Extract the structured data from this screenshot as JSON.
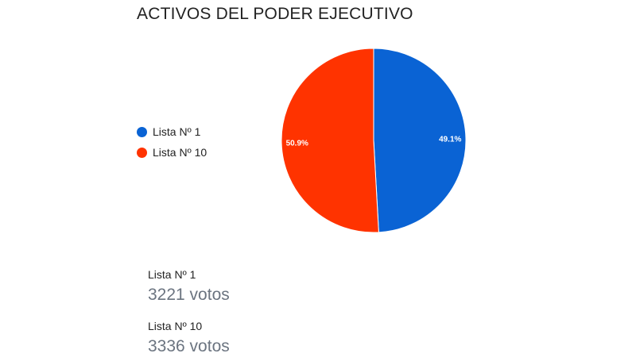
{
  "chart_data": {
    "type": "pie",
    "title": "ACTIVOS DEL PODER EJECUTIVO",
    "categories": [
      "Lista Nº 1",
      "Lista Nº 10"
    ],
    "values": [
      3221,
      3336
    ],
    "percent_labels": [
      "49.1%",
      "50.9%"
    ],
    "colors": [
      "#0a63d4",
      "#ff3300"
    ],
    "legend_position": "left"
  },
  "results": [
    {
      "name": "Lista Nº 1",
      "votes": "3221 votos"
    },
    {
      "name": "Lista Nº 10",
      "votes": "3336 votos"
    }
  ]
}
